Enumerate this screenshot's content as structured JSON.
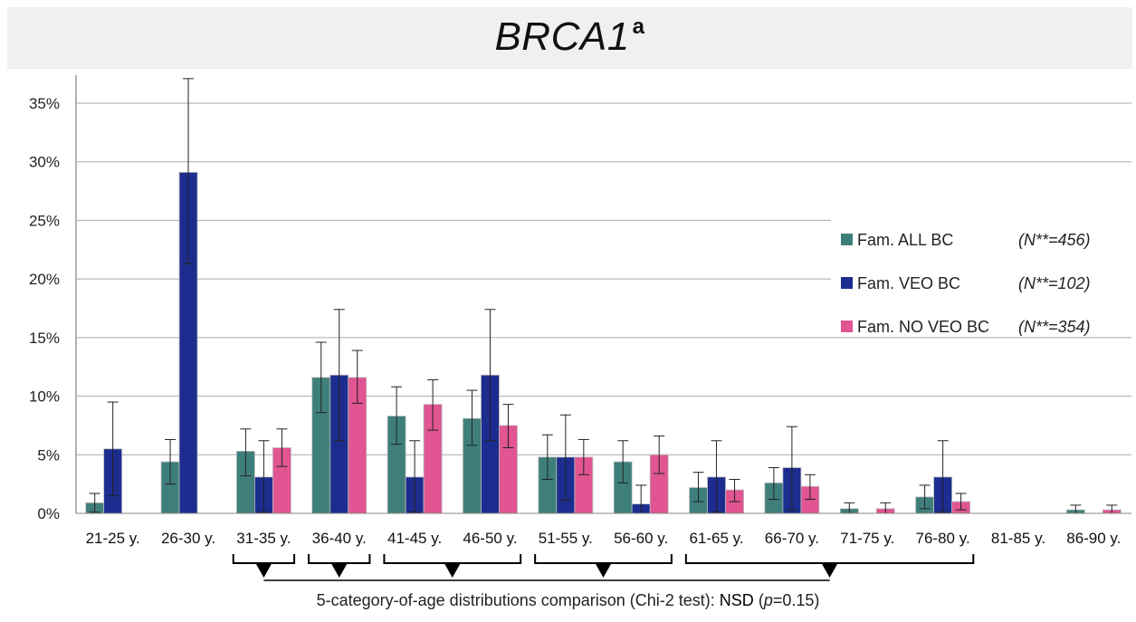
{
  "chart_data": {
    "type": "bar",
    "title": "BRCA1",
    "title_superscript": "a",
    "categories": [
      "21-25 y.",
      "26-30 y.",
      "31-35 y.",
      "36-40 y.",
      "41-45 y.",
      "46-50 y.",
      "51-55 y.",
      "56-60 y.",
      "61-65 y.",
      "66-70 y.",
      "71-75 y.",
      "76-80 y.",
      "81-85 y.",
      "86-90 y."
    ],
    "ylim": [
      0,
      35
    ],
    "ytick_values": [
      0,
      5,
      10,
      15,
      20,
      25,
      30,
      35
    ],
    "yticks": [
      "0%",
      "5%",
      "10%",
      "15%",
      "20%",
      "25%",
      "30%",
      "35%"
    ],
    "grid": true,
    "legend_position": "right",
    "series": [
      {
        "name": "Fam. ALL BC",
        "n_label": "(N**=456)",
        "color": "#3f7f7b",
        "values": [
          0.9,
          4.4,
          5.3,
          11.6,
          8.3,
          8.1,
          4.8,
          4.4,
          2.2,
          2.6,
          0.4,
          1.4,
          0.0,
          0.3
        ],
        "err_low": [
          0.1,
          2.5,
          3.2,
          8.6,
          5.9,
          5.8,
          2.9,
          2.6,
          1.0,
          1.2,
          0.0,
          0.4,
          0.0,
          0.0
        ],
        "err_high": [
          1.7,
          6.3,
          7.2,
          14.6,
          10.8,
          10.5,
          6.7,
          6.2,
          3.5,
          3.9,
          0.9,
          2.4,
          0.0,
          0.7
        ]
      },
      {
        "name": "Fam. VEO BC",
        "n_label": "(N**=102)",
        "color": "#1c2d8f",
        "values": [
          5.5,
          29.1,
          3.1,
          11.8,
          3.1,
          11.8,
          4.8,
          0.8,
          3.1,
          3.9,
          0.0,
          3.1,
          0.0,
          0.0
        ],
        "err_low": [
          1.5,
          21.3,
          0.1,
          6.2,
          0.1,
          6.2,
          1.1,
          0.0,
          0.1,
          0.3,
          0.0,
          0.1,
          0.0,
          0.0
        ],
        "err_high": [
          9.5,
          37.1,
          6.2,
          17.4,
          6.2,
          17.4,
          8.4,
          2.4,
          6.2,
          7.4,
          0.0,
          6.2,
          0.0,
          0.0
        ]
      },
      {
        "name": "Fam. NO VEO BC",
        "n_label": "(N**=354)",
        "color": "#e05592",
        "values": [
          0.0,
          0.0,
          5.6,
          11.6,
          9.3,
          7.5,
          4.8,
          5.0,
          2.0,
          2.3,
          0.4,
          1.0,
          0.0,
          0.3
        ],
        "err_low": [
          0.0,
          0.0,
          4.0,
          9.4,
          7.1,
          5.6,
          3.3,
          3.4,
          1.0,
          1.2,
          0.0,
          0.3,
          0.0,
          0.0
        ],
        "err_high": [
          0.0,
          0.0,
          7.2,
          13.9,
          11.4,
          9.3,
          6.3,
          6.6,
          2.9,
          3.3,
          0.9,
          1.7,
          0.0,
          0.7
        ]
      }
    ],
    "groupings": [
      [
        2,
        2
      ],
      [
        3,
        3
      ],
      [
        4,
        5
      ],
      [
        6,
        7
      ],
      [
        8,
        11
      ]
    ],
    "footnote": {
      "prefix": "5-category-of-age distributions comparison (Chi-2 test): ",
      "nsd": "NSD",
      "p_open": " (",
      "p_italic": "p",
      "p_rest": "=0.15)"
    }
  }
}
